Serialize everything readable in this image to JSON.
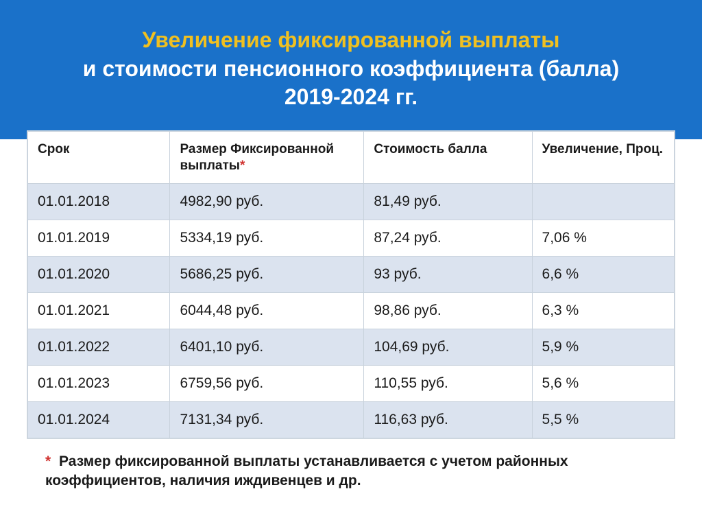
{
  "header": {
    "line1": "Увеличение фиксированной выплаты",
    "line2": "и стоимости пенсионного коэффициента (балла)",
    "line3": "2019-2024 гг.",
    "bg_color": "#1a71c9",
    "accent_color": "#f0c020",
    "text_color": "#ffffff",
    "fontsize": 32
  },
  "table": {
    "columns": [
      {
        "label": "Срок",
        "width_pct": 22
      },
      {
        "label": "Размер Фиксированной выплаты",
        "asterisk": true,
        "width_pct": 30
      },
      {
        "label": "Стоимость балла",
        "width_pct": 26
      },
      {
        "label": "Увеличение, Проц.",
        "width_pct": 22
      }
    ],
    "rows": [
      [
        "01.01.2018",
        "4982,90 руб.",
        "81,49 руб.",
        ""
      ],
      [
        "01.01.2019",
        "5334,19 руб.",
        "87,24 руб.",
        "7,06 %"
      ],
      [
        "01.01.2020",
        "5686,25 руб.",
        "93 руб.",
        "6,6 %"
      ],
      [
        "01.01.2021",
        "6044,48 руб.",
        "98,86 руб.",
        "6,3 %"
      ],
      [
        "01.01.2022",
        "6401,10 руб.",
        "104,69 руб.",
        "5,9 %"
      ],
      [
        "01.01.2023",
        "6759,56 руб.",
        "110,55 руб.",
        "5,6 %"
      ],
      [
        "01.01.2024",
        "7131,34 руб.",
        "116,63 руб.",
        "5,5 %"
      ]
    ],
    "header_bg": "#ffffff",
    "row_odd_bg": "#dbe3ef",
    "row_even_bg": "#ffffff",
    "border_color": "#c8d2dc",
    "header_fontsize": 19,
    "cell_fontsize": 21,
    "text_color": "#1a1a1a"
  },
  "footnote": {
    "marker": "*",
    "text": "Размер фиксированной выплаты устанавливается с учетом районных коэффициентов, наличия иждивенцев и др.",
    "marker_color": "#d0322f",
    "fontsize": 21
  }
}
